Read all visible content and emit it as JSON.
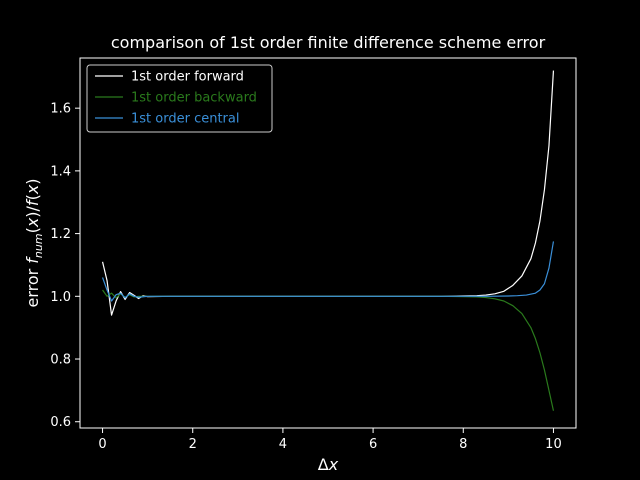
{
  "chart_data": {
    "type": "line",
    "title": "comparison of 1st order finite difference scheme error",
    "xlabel": "Δx",
    "ylabel": "error f_num(x)/f(x)",
    "xlim": [
      -0.5,
      10.5
    ],
    "ylim": [
      0.58,
      1.76
    ],
    "xticks": [
      0,
      2,
      4,
      6,
      8,
      10
    ],
    "xtick_labels": [
      "0",
      "2",
      "4",
      "6",
      "8",
      "10"
    ],
    "yticks": [
      0.6,
      0.8,
      1.0,
      1.2,
      1.4,
      1.6
    ],
    "ytick_labels": [
      "0.6",
      "0.8",
      "1.0",
      "1.2",
      "1.4",
      "1.6"
    ],
    "grid": false,
    "legend_position": "top-left",
    "series": [
      {
        "name": "1st order forward",
        "color": "#ffffff",
        "points": [
          [
            0,
            1.11
          ],
          [
            0.1,
            1.05
          ],
          [
            0.2,
            0.94
          ],
          [
            0.3,
            0.985
          ],
          [
            0.4,
            1.015
          ],
          [
            0.5,
            0.99
          ],
          [
            0.6,
            1.012
          ],
          [
            0.7,
            1.003
          ],
          [
            0.8,
            0.993
          ],
          [
            0.9,
            1.002
          ],
          [
            1.0,
            0.999
          ],
          [
            1.5,
            1.0
          ],
          [
            2,
            1.0
          ],
          [
            3,
            1.0
          ],
          [
            4,
            1.0
          ],
          [
            5,
            1.0
          ],
          [
            6,
            1.0
          ],
          [
            7,
            1.0
          ],
          [
            7.5,
            1.0
          ],
          [
            8.0,
            1.001
          ],
          [
            8.3,
            1.002
          ],
          [
            8.5,
            1.004
          ],
          [
            8.7,
            1.008
          ],
          [
            8.9,
            1.016
          ],
          [
            9.1,
            1.035
          ],
          [
            9.3,
            1.065
          ],
          [
            9.5,
            1.12
          ],
          [
            9.6,
            1.17
          ],
          [
            9.7,
            1.24
          ],
          [
            9.8,
            1.34
          ],
          [
            9.9,
            1.48
          ],
          [
            10.0,
            1.72
          ]
        ]
      },
      {
        "name": "1st order backward",
        "color": "#2a7a1c",
        "points": [
          [
            0,
            1.02
          ],
          [
            0.1,
            1.0
          ],
          [
            0.2,
            1.01
          ],
          [
            0.3,
            0.995
          ],
          [
            0.4,
            1.008
          ],
          [
            0.5,
            0.997
          ],
          [
            0.6,
            1.005
          ],
          [
            0.7,
            0.998
          ],
          [
            0.8,
            1.0
          ],
          [
            1.0,
            1.0
          ],
          [
            2,
            1.0
          ],
          [
            3,
            1.0
          ],
          [
            4,
            1.0
          ],
          [
            5,
            1.0
          ],
          [
            6,
            1.0
          ],
          [
            7,
            1.0
          ],
          [
            7.5,
            1.0
          ],
          [
            8.0,
            0.999
          ],
          [
            8.3,
            0.998
          ],
          [
            8.5,
            0.996
          ],
          [
            8.7,
            0.992
          ],
          [
            8.9,
            0.985
          ],
          [
            9.1,
            0.97
          ],
          [
            9.3,
            0.945
          ],
          [
            9.5,
            0.9
          ],
          [
            9.6,
            0.865
          ],
          [
            9.7,
            0.82
          ],
          [
            9.8,
            0.765
          ],
          [
            9.9,
            0.7
          ],
          [
            10.0,
            0.635
          ]
        ]
      },
      {
        "name": "1st order central",
        "color": "#3a8fd8",
        "points": [
          [
            0,
            1.06
          ],
          [
            0.1,
            1.02
          ],
          [
            0.2,
            0.985
          ],
          [
            0.3,
            1.005
          ],
          [
            0.4,
            1.01
          ],
          [
            0.5,
            0.995
          ],
          [
            0.6,
            1.008
          ],
          [
            0.7,
            1.0
          ],
          [
            0.8,
            0.997
          ],
          [
            1.0,
            1.0
          ],
          [
            2,
            1.0
          ],
          [
            3,
            1.0
          ],
          [
            4,
            1.0
          ],
          [
            5,
            1.0
          ],
          [
            6,
            1.0
          ],
          [
            7,
            1.0
          ],
          [
            8,
            1.0
          ],
          [
            8.5,
            1.0
          ],
          [
            9.0,
            1.001
          ],
          [
            9.2,
            1.002
          ],
          [
            9.4,
            1.004
          ],
          [
            9.6,
            1.01
          ],
          [
            9.7,
            1.02
          ],
          [
            9.8,
            1.04
          ],
          [
            9.9,
            1.09
          ],
          [
            10.0,
            1.175
          ]
        ]
      }
    ]
  }
}
